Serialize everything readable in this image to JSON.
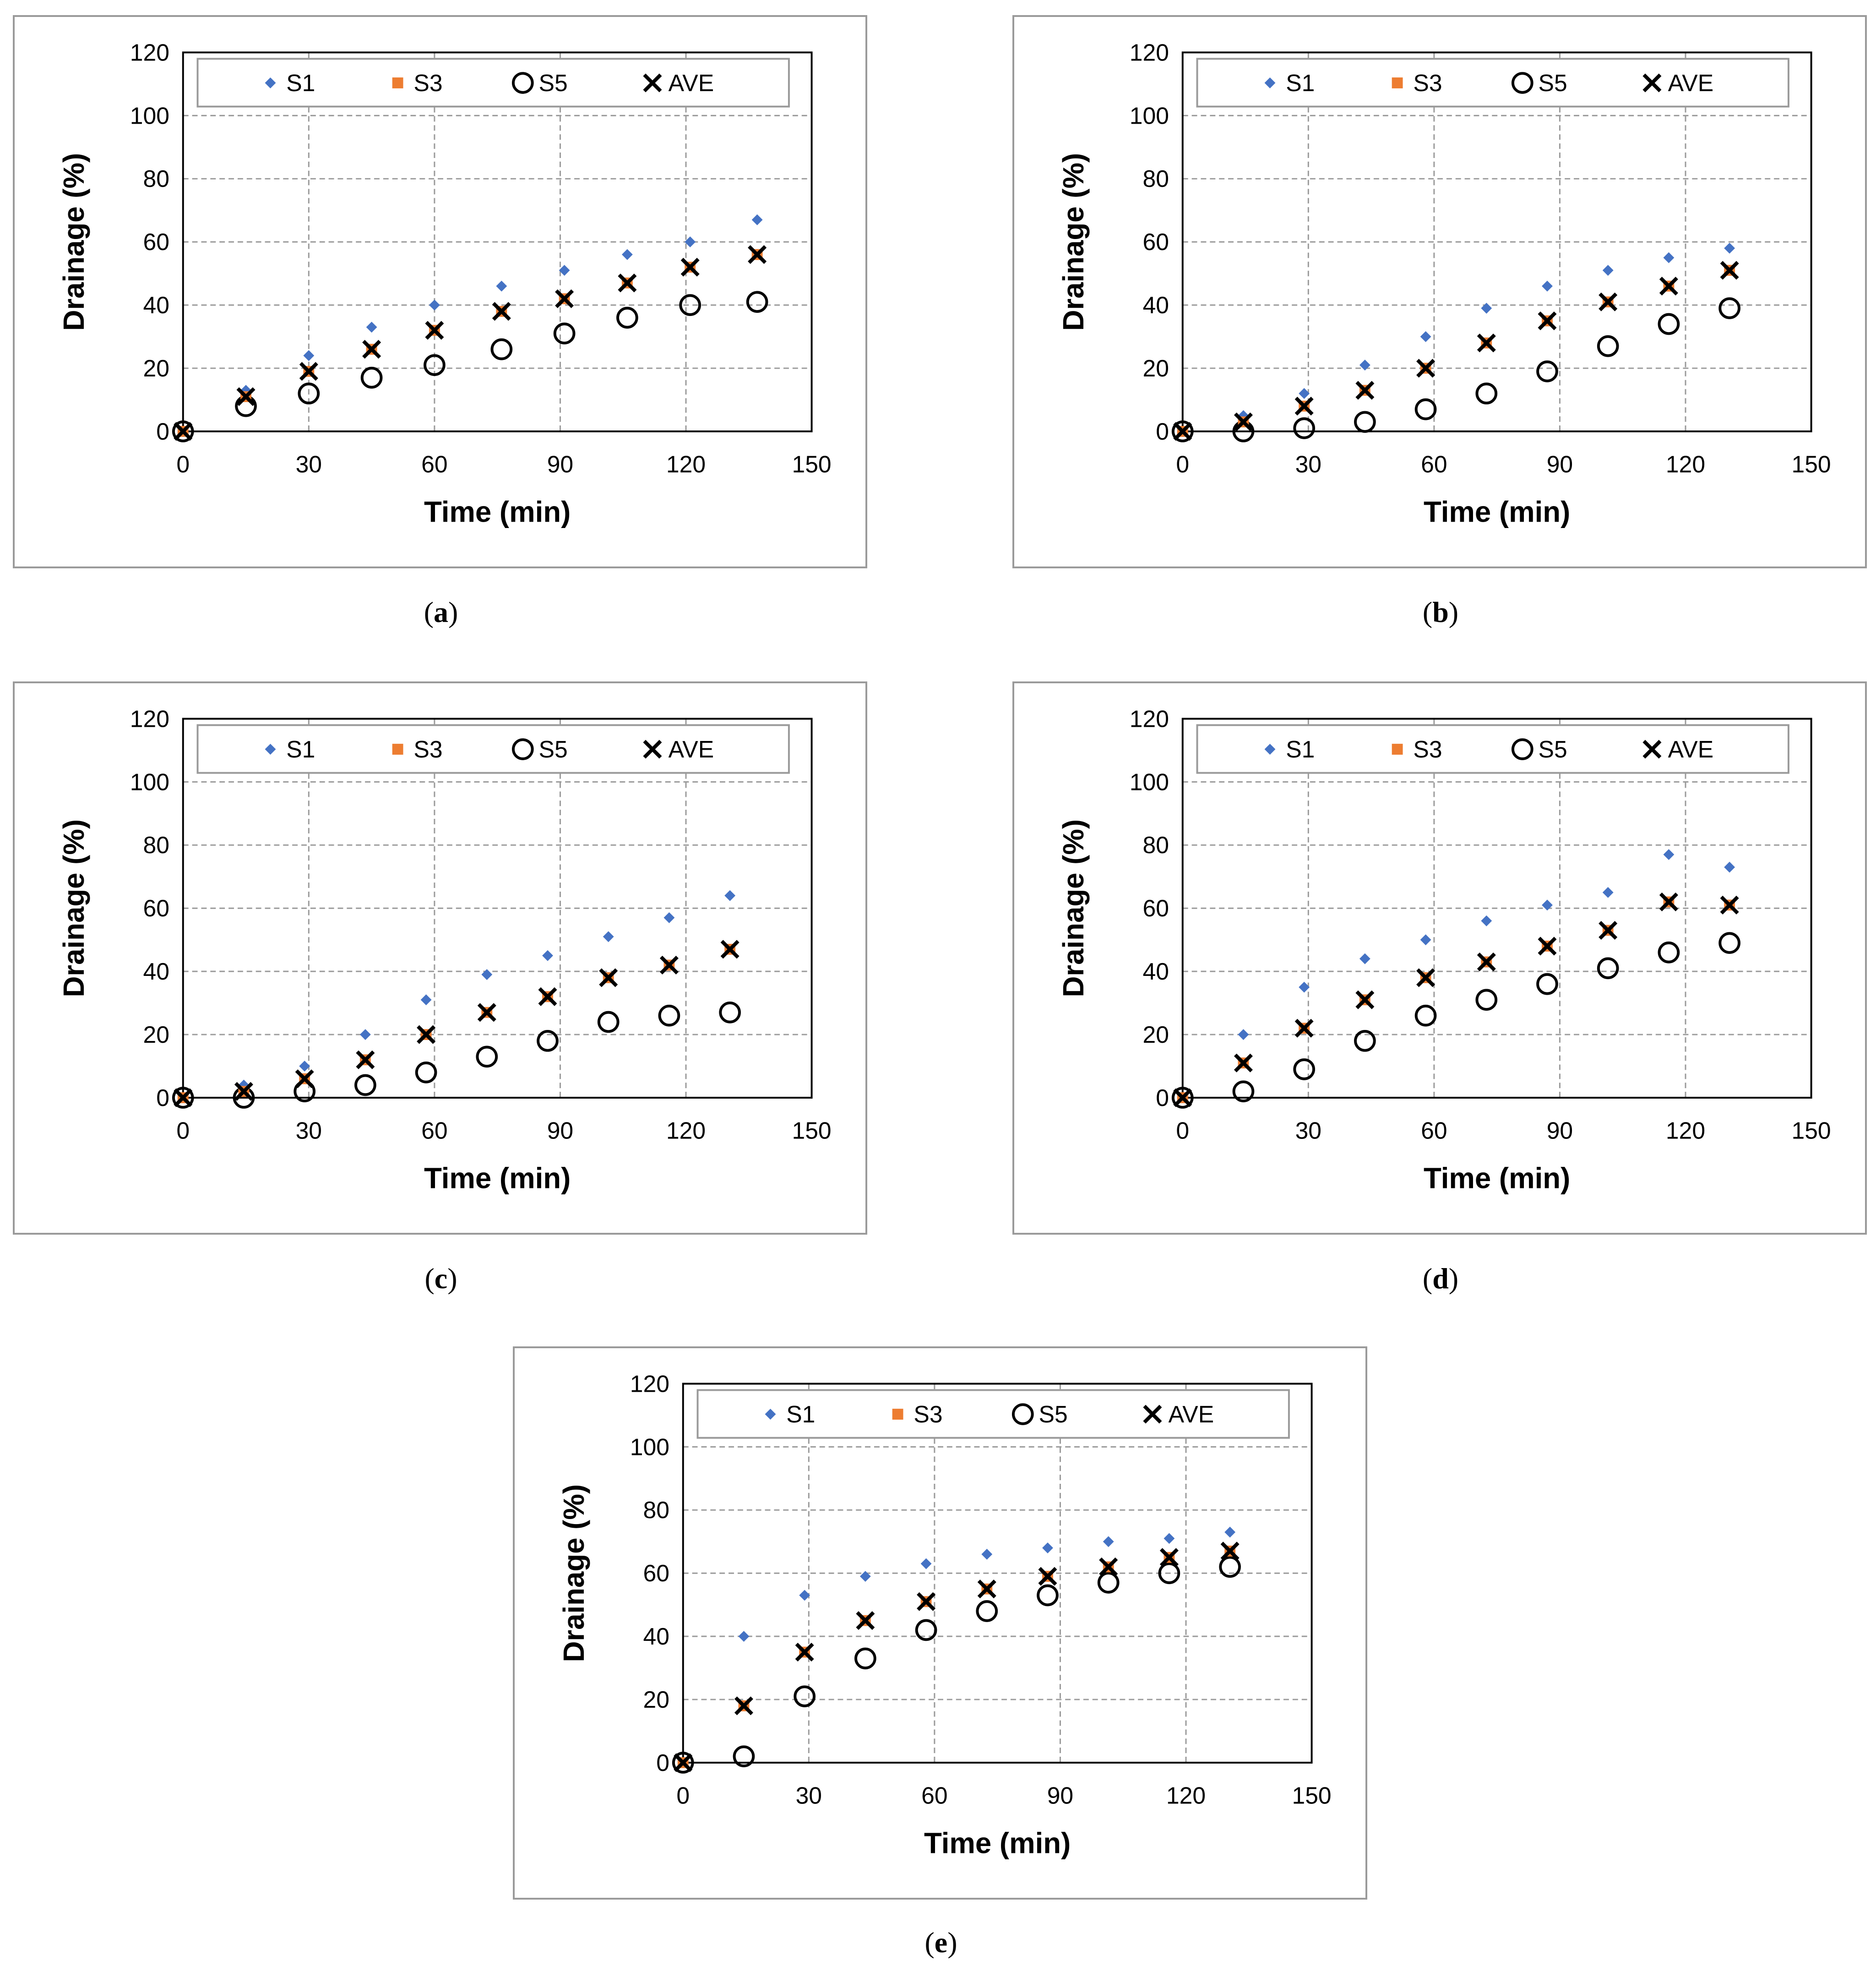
{
  "colors": {
    "s1": "#4472c4",
    "s3": "#ed7d31",
    "s5": "#000000",
    "ave": "#000000",
    "grid": "#9a9a9a"
  },
  "chart_data": [
    {
      "type": "scatter",
      "id": "a",
      "caption": "a",
      "xlabel": "Time (min)",
      "ylabel": "Drainage (%)",
      "xlim": [
        0,
        150
      ],
      "ylim": [
        0,
        120
      ],
      "xticks": [
        0,
        30,
        60,
        90,
        120,
        150
      ],
      "yticks": [
        0,
        20,
        40,
        60,
        80,
        100,
        120
      ],
      "legend": [
        "S1",
        "S3",
        "S5",
        "AVE"
      ],
      "x": [
        0,
        15,
        30,
        45,
        60,
        76,
        91,
        106,
        121,
        137
      ],
      "series": [
        {
          "name": "S1",
          "values": [
            0,
            13,
            24,
            33,
            40,
            46,
            51,
            56,
            60,
            67
          ]
        },
        {
          "name": "S3",
          "values": [
            0,
            11,
            19,
            26,
            32,
            38,
            42,
            47,
            52,
            56
          ]
        },
        {
          "name": "S5",
          "values": [
            0,
            8,
            12,
            17,
            21,
            26,
            31,
            36,
            40,
            41
          ]
        },
        {
          "name": "AVE",
          "values": [
            0,
            11,
            19,
            26,
            32,
            38,
            42,
            47,
            52,
            56
          ]
        }
      ]
    },
    {
      "type": "scatter",
      "id": "b",
      "caption": "b",
      "xlabel": "Time (min)",
      "ylabel": "Drainage (%)",
      "xlim": [
        0,
        150
      ],
      "ylim": [
        0,
        120
      ],
      "xticks": [
        0,
        30,
        60,
        90,
        120,
        150
      ],
      "yticks": [
        0,
        20,
        40,
        60,
        80,
        100,
        120
      ],
      "legend": [
        "S1",
        "S3",
        "S5",
        "AVE"
      ],
      "x": [
        0,
        14.5,
        29,
        43.5,
        58,
        72.5,
        87,
        101.5,
        116,
        130.5
      ],
      "series": [
        {
          "name": "S1",
          "values": [
            0,
            5,
            12,
            21,
            30,
            39,
            46,
            51,
            55,
            58
          ]
        },
        {
          "name": "S3",
          "values": [
            0,
            3,
            8,
            13,
            20,
            28,
            35,
            41,
            46,
            51
          ]
        },
        {
          "name": "S5",
          "values": [
            0,
            0,
            1,
            3,
            7,
            12,
            19,
            27,
            34,
            39
          ]
        },
        {
          "name": "AVE",
          "values": [
            0,
            3,
            8,
            13,
            20,
            28,
            35,
            41,
            46,
            51
          ]
        }
      ]
    },
    {
      "type": "scatter",
      "id": "c",
      "caption": "c",
      "xlabel": "Time (min)",
      "ylabel": "Drainage (%)",
      "xlim": [
        0,
        150
      ],
      "ylim": [
        0,
        120
      ],
      "xticks": [
        0,
        30,
        60,
        90,
        120,
        150
      ],
      "yticks": [
        0,
        20,
        40,
        60,
        80,
        100,
        120
      ],
      "legend": [
        "S1",
        "S3",
        "S5",
        "AVE"
      ],
      "x": [
        0,
        14.5,
        29,
        43.5,
        58,
        72.5,
        87,
        101.5,
        116,
        130.5
      ],
      "series": [
        {
          "name": "S1",
          "values": [
            0,
            4,
            10,
            20,
            31,
            39,
            45,
            51,
            57,
            64
          ]
        },
        {
          "name": "S3",
          "values": [
            0,
            2,
            6,
            12,
            20,
            27,
            32,
            38,
            42,
            47
          ]
        },
        {
          "name": "S5",
          "values": [
            0,
            0,
            2,
            4,
            8,
            13,
            18,
            24,
            26,
            27
          ]
        },
        {
          "name": "AVE",
          "values": [
            0,
            2,
            6,
            12,
            20,
            27,
            32,
            38,
            42,
            47
          ]
        }
      ]
    },
    {
      "type": "scatter",
      "id": "d",
      "caption": "d",
      "xlabel": "Time (min)",
      "ylabel": "Drainage (%)",
      "xlim": [
        0,
        150
      ],
      "ylim": [
        0,
        120
      ],
      "xticks": [
        0,
        30,
        60,
        90,
        120,
        150
      ],
      "yticks": [
        0,
        20,
        40,
        60,
        80,
        100,
        120
      ],
      "legend": [
        "S1",
        "S3",
        "S5",
        "AVE"
      ],
      "x": [
        0,
        14.5,
        29,
        43.5,
        58,
        72.5,
        87,
        101.5,
        116,
        130.5
      ],
      "series": [
        {
          "name": "S1",
          "values": [
            0,
            20,
            35,
            44,
            50,
            56,
            61,
            65,
            77,
            73
          ]
        },
        {
          "name": "S3",
          "values": [
            0,
            11,
            22,
            31,
            38,
            43,
            48,
            53,
            62,
            61
          ]
        },
        {
          "name": "S5",
          "values": [
            0,
            2,
            9,
            18,
            26,
            31,
            36,
            41,
            46,
            49
          ]
        },
        {
          "name": "AVE",
          "values": [
            0,
            11,
            22,
            31,
            38,
            43,
            48,
            53,
            62,
            61
          ]
        }
      ]
    },
    {
      "type": "scatter",
      "id": "e",
      "caption": "e",
      "xlabel": "Time (min)",
      "ylabel": "Drainage (%)",
      "xlim": [
        0,
        150
      ],
      "ylim": [
        0,
        120
      ],
      "xticks": [
        0,
        30,
        60,
        90,
        120,
        150
      ],
      "yticks": [
        0,
        20,
        40,
        60,
        80,
        100,
        120
      ],
      "legend": [
        "S1",
        "S3",
        "S5",
        "AVE"
      ],
      "x": [
        0,
        14.5,
        29,
        43.5,
        58,
        72.5,
        87,
        101.5,
        116,
        130.5
      ],
      "series": [
        {
          "name": "S1",
          "values": [
            0,
            40,
            53,
            59,
            63,
            66,
            68,
            70,
            71,
            73
          ]
        },
        {
          "name": "S3",
          "values": [
            0,
            18,
            35,
            45,
            51,
            55,
            59,
            62,
            65,
            67
          ]
        },
        {
          "name": "S5",
          "values": [
            0,
            2,
            21,
            33,
            42,
            48,
            53,
            57,
            60,
            62
          ]
        },
        {
          "name": "AVE",
          "values": [
            0,
            18,
            35,
            45,
            51,
            55,
            59,
            62,
            65,
            67
          ]
        }
      ]
    }
  ]
}
